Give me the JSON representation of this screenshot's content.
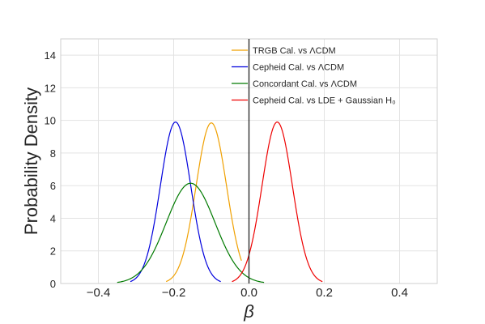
{
  "chart_data": {
    "type": "line",
    "title": "",
    "xlabel": "β",
    "ylabel": "Probability Density",
    "xlim": [
      -0.5,
      0.5
    ],
    "ylim": [
      0,
      15
    ],
    "x_ticks": [
      -0.4,
      -0.2,
      0.0,
      0.2,
      0.4
    ],
    "x_tick_labels": [
      "−0.4",
      "−0.2",
      "0.0",
      "0.2",
      "0.4"
    ],
    "y_ticks": [
      0,
      2,
      4,
      6,
      8,
      10,
      12,
      14
    ],
    "y_tick_labels": [
      "0",
      "2",
      "4",
      "6",
      "8",
      "10",
      "12",
      "14"
    ],
    "grid": true,
    "legend_position": "top-right",
    "reference_line": {
      "x": 0.0,
      "color": "#222222"
    },
    "series": [
      {
        "name": "TRGB Cal. vs ΛCDM",
        "color": "#f0a000",
        "mean": -0.1,
        "peak": 9.85,
        "x_min": -0.22,
        "x_max": -0.02
      },
      {
        "name": "Cepheid Cal. vs ΛCDM",
        "color": "#0000dd",
        "mean": -0.195,
        "peak": 9.9,
        "x_min": -0.315,
        "x_max": -0.075
      },
      {
        "name": "Concordant Cal. vs ΛCDM",
        "color": "#007a00",
        "mean": -0.155,
        "peak": 6.15,
        "x_min": -0.35,
        "x_max": 0.04
      },
      {
        "name": "Cepheid Cal. vs LDE + Gaussian H₀",
        "color": "#ee0000",
        "mean": 0.075,
        "peak": 9.9,
        "x_min": -0.045,
        "x_max": 0.195
      }
    ]
  }
}
